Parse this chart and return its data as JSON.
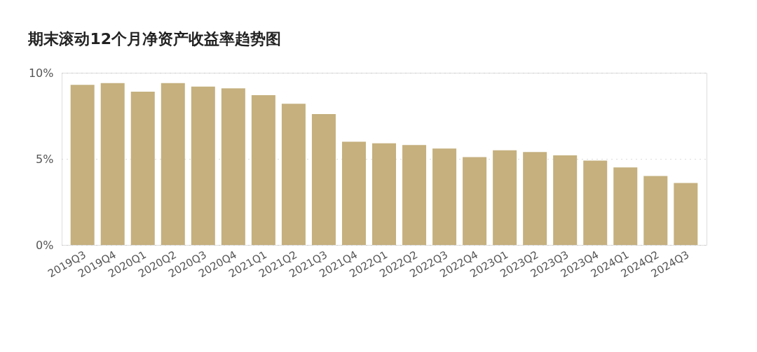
{
  "chart_data": {
    "type": "bar",
    "title": "期末滚动12个月净资产收益率趋势图",
    "categories": [
      "2019Q3",
      "2019Q4",
      "2020Q1",
      "2020Q2",
      "2020Q3",
      "2020Q4",
      "2021Q1",
      "2021Q2",
      "2021Q3",
      "2021Q4",
      "2022Q1",
      "2022Q2",
      "2022Q3",
      "2022Q4",
      "2023Q1",
      "2023Q2",
      "2023Q3",
      "2023Q4",
      "2024Q1",
      "2024Q2",
      "2024Q3"
    ],
    "values": [
      9.3,
      9.4,
      8.9,
      9.4,
      9.2,
      9.1,
      8.7,
      8.2,
      7.6,
      6.0,
      5.9,
      5.8,
      5.6,
      5.1,
      5.5,
      5.4,
      5.2,
      4.9,
      4.5,
      4.0,
      3.6
    ],
    "color": "#c5b07e",
    "ylim": [
      0,
      10
    ],
    "yticks": [
      {
        "value": 0,
        "label": "0%"
      },
      {
        "value": 5,
        "label": "5%"
      },
      {
        "value": 10,
        "label": "10%"
      }
    ],
    "grid": "y"
  }
}
